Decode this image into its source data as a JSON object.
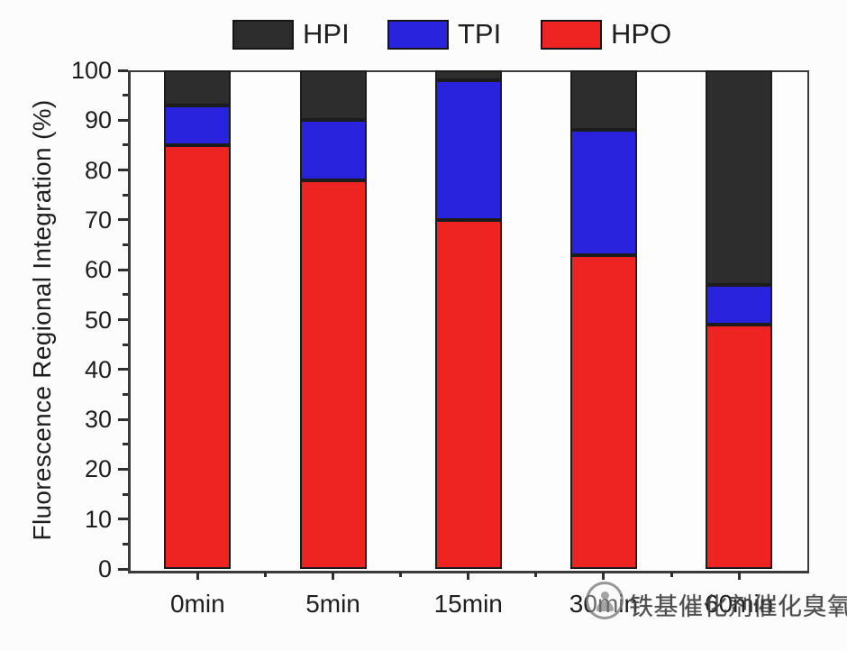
{
  "chart_data": {
    "type": "bar",
    "stacked": true,
    "title": "",
    "xlabel": "",
    "ylabel": "Fluorescence Regional Integration (%)",
    "ylim": [
      0,
      100
    ],
    "ytick_major_step": 10,
    "ytick_minor_step": 5,
    "ytick_labels": [
      "0",
      "10",
      "20",
      "30",
      "40",
      "50",
      "60",
      "70",
      "80",
      "90",
      "100"
    ],
    "categories": [
      "0min",
      "5min",
      "15min",
      "30min",
      "60min"
    ],
    "series": [
      {
        "name": "HPO",
        "color": "#ee2423",
        "values": [
          85,
          78,
          70,
          63,
          49
        ]
      },
      {
        "name": "TPI",
        "color": "#2a23de",
        "values": [
          8,
          12,
          28,
          25,
          8
        ]
      },
      {
        "name": "HPI",
        "color": "#2d2d2d",
        "values": [
          7,
          10,
          2,
          12,
          43
        ]
      }
    ],
    "grid": false,
    "legend": {
      "position": "top",
      "entries": [
        {
          "label": "HPI",
          "color": "#2d2d2d"
        },
        {
          "label": "TPI",
          "color": "#2a23de"
        },
        {
          "label": "HPO",
          "color": "#ee2423"
        }
      ]
    }
  },
  "watermark": {
    "icon": "circle-logo-icon",
    "text": "铁基催化剂催化臭氧"
  },
  "colors": {
    "axis": "#3b3b3b",
    "text": "#1e1e1e",
    "background": "#fcfcfc",
    "segment_border": "#1c1c1c",
    "watermark_text": "#424242"
  }
}
